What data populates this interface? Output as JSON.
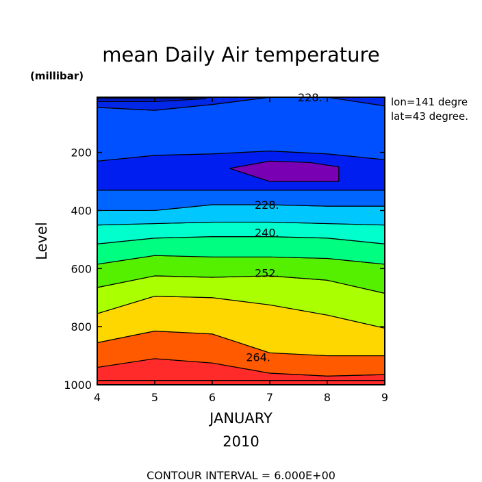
{
  "chart_data": {
    "type": "heatmap",
    "title": "mean Daily Air temperature",
    "y_units": "(millibar)",
    "ylabel": "Level",
    "xlabel": "JANUARY",
    "xlabel2": "2010",
    "x_ticks": [
      "4",
      "5",
      "6",
      "7",
      "8",
      "9"
    ],
    "y_ticks": [
      "200",
      "400",
      "600",
      "800",
      "1000"
    ],
    "xlim": [
      4,
      9
    ],
    "ylim": [
      1000,
      10
    ],
    "y_reversed": true,
    "location": [
      "lon=141 degre",
      "lat=43 degree."
    ],
    "contour_interval_label": "CONTOUR INTERVAL = 6.000E+00",
    "contour_interval": 6,
    "contour_labels": [
      {
        "text": "228.",
        "x": 7.7,
        "level": 10
      },
      {
        "text": "228.",
        "x": 6.95,
        "level": 380
      },
      {
        "text": "240.",
        "x": 6.95,
        "level": 475
      },
      {
        "text": "252.",
        "x": 6.95,
        "level": 615
      },
      {
        "text": "264.",
        "x": 6.8,
        "level": 905
      }
    ],
    "x": [
      4,
      5,
      6,
      7,
      8,
      9
    ],
    "band_upper_boundaries": [
      {
        "fill": "#ff2a2a",
        "top": [
          985,
          985,
          985,
          985,
          985,
          985
        ],
        "bottom": [
          1000,
          1000,
          1000,
          1000,
          1000,
          1000
        ]
      },
      {
        "fill": "#ff2a2a",
        "top": [
          940,
          910,
          925,
          960,
          970,
          965
        ]
      },
      {
        "fill": "#ff5a00",
        "top": [
          855,
          815,
          825,
          890,
          900,
          900
        ]
      },
      {
        "fill": "#ffd700",
        "top": [
          755,
          695,
          700,
          725,
          760,
          805
        ]
      },
      {
        "fill": "#aaff00",
        "top": [
          665,
          625,
          630,
          625,
          640,
          685
        ]
      },
      {
        "fill": "#55f000",
        "top": [
          585,
          555,
          560,
          560,
          565,
          585
        ]
      },
      {
        "fill": "#00ff80",
        "top": [
          515,
          495,
          490,
          490,
          495,
          515
        ]
      },
      {
        "fill": "#00ffcc",
        "top": [
          450,
          445,
          440,
          440,
          445,
          450
        ]
      },
      {
        "fill": "#00c8ff",
        "top": [
          400,
          400,
          380,
          380,
          385,
          385
        ]
      },
      {
        "fill": "#0064ff",
        "top": [
          330,
          330,
          330,
          330,
          330,
          330
        ]
      },
      {
        "fill": "#001ef0",
        "top": [
          230,
          210,
          205,
          195,
          205,
          225
        ]
      },
      {
        "fill": "#0050ff",
        "top": [
          45,
          55,
          35,
          10,
          10,
          40
        ]
      },
      {
        "fill": "#0028e6",
        "top": [
          10,
          10,
          10,
          10,
          10,
          10
        ]
      }
    ],
    "cold_core": {
      "fill": "#7a00b4",
      "x": [
        6.3,
        7.0,
        7.7,
        8.2,
        8.2,
        7.0,
        6.3
      ],
      "level": [
        255,
        230,
        235,
        250,
        300,
        300,
        255
      ]
    },
    "top_sliver": {
      "fill": "#0019d2",
      "x": [
        4,
        5,
        5.9,
        4
      ],
      "level": [
        25,
        25,
        15,
        15
      ]
    }
  }
}
